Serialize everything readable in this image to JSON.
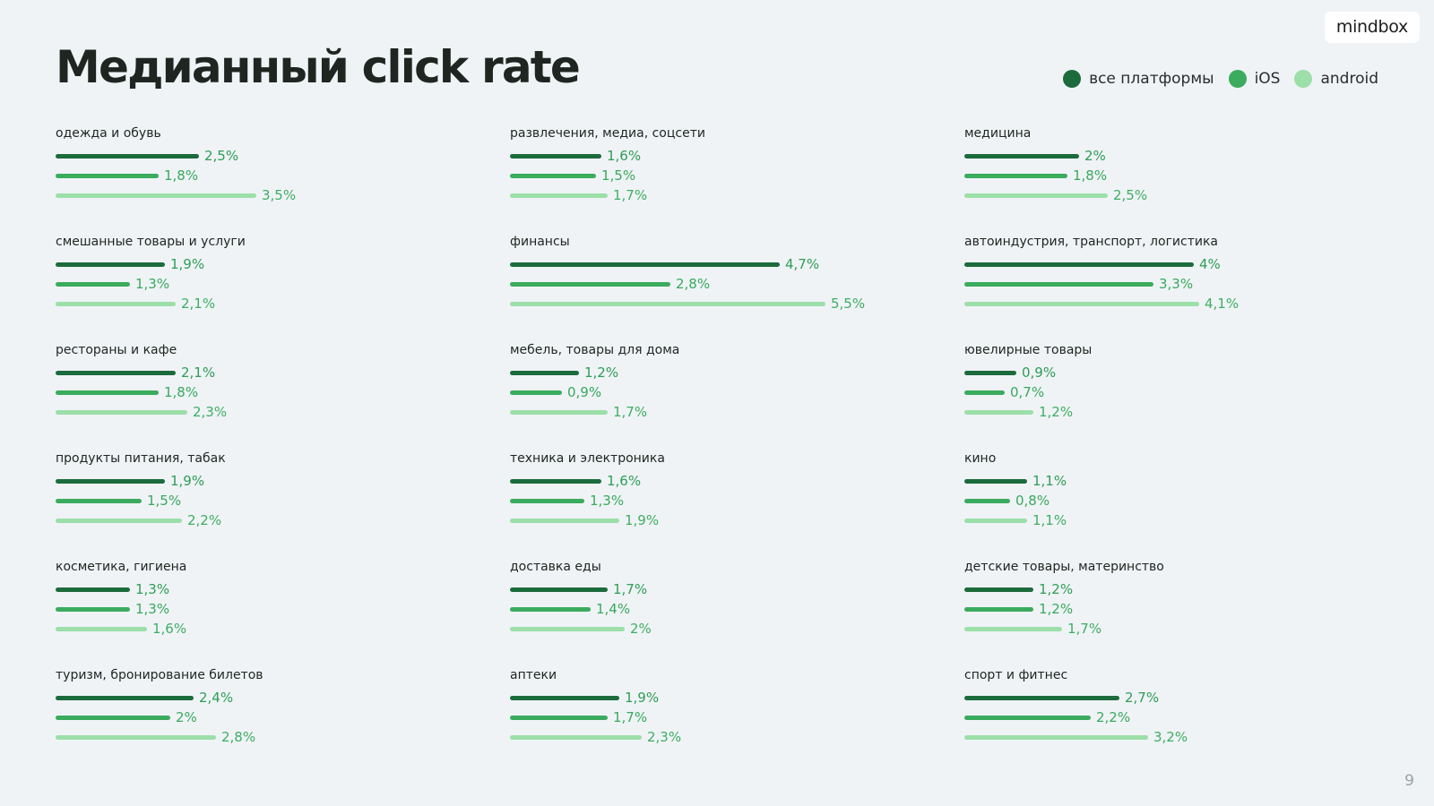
{
  "logo": "mindbox",
  "title": "Медианный click rate",
  "page_number": "9",
  "colors": {
    "all": "#1c6b3c",
    "ios": "#3bab5e",
    "android": "#9cdfa9"
  },
  "legend": [
    {
      "label": "все платформы",
      "key": "all"
    },
    {
      "label": "iOS",
      "key": "ios"
    },
    {
      "label": "android",
      "key": "android"
    }
  ],
  "chart_data": {
    "type": "bar",
    "orientation": "horizontal",
    "title": "Медианный click rate",
    "unit": "%",
    "series_names": [
      "все платформы",
      "iOS",
      "android"
    ],
    "categories": [
      {
        "name": "одежда и обувь",
        "values": [
          2.5,
          1.8,
          3.5
        ],
        "labels": [
          "2,5%",
          "1,8%",
          "3,5%"
        ]
      },
      {
        "name": "смешанные товары и услуги",
        "values": [
          1.9,
          1.3,
          2.1
        ],
        "labels": [
          "1,9%",
          "1,3%",
          "2,1%"
        ]
      },
      {
        "name": "рестораны и кафе",
        "values": [
          2.1,
          1.8,
          2.3
        ],
        "labels": [
          "2,1%",
          "1,8%",
          "2,3%"
        ]
      },
      {
        "name": "продукты питания, табак",
        "values": [
          1.9,
          1.5,
          2.2
        ],
        "labels": [
          "1,9%",
          "1,5%",
          "2,2%"
        ]
      },
      {
        "name": "косметика, гигиена",
        "values": [
          1.3,
          1.3,
          1.6
        ],
        "labels": [
          "1,3%",
          "1,3%",
          "1,6%"
        ]
      },
      {
        "name": "туризм, бронирование билетов",
        "values": [
          2.4,
          2.0,
          2.8
        ],
        "labels": [
          "2,4%",
          "2%",
          "2,8%"
        ]
      },
      {
        "name": "развлечения, медиа, соцсети",
        "values": [
          1.6,
          1.5,
          1.7
        ],
        "labels": [
          "1,6%",
          "1,5%",
          "1,7%"
        ]
      },
      {
        "name": "финансы",
        "values": [
          4.7,
          2.8,
          5.5
        ],
        "labels": [
          "4,7%",
          "2,8%",
          "5,5%"
        ]
      },
      {
        "name": "мебель, товары для дома",
        "values": [
          1.2,
          0.9,
          1.7
        ],
        "labels": [
          "1,2%",
          "0,9%",
          "1,7%"
        ]
      },
      {
        "name": "техника и электроника",
        "values": [
          1.6,
          1.3,
          1.9
        ],
        "labels": [
          "1,6%",
          "1,3%",
          "1,9%"
        ]
      },
      {
        "name": "доставка еды",
        "values": [
          1.7,
          1.4,
          2.0
        ],
        "labels": [
          "1,7%",
          "1,4%",
          "2%"
        ]
      },
      {
        "name": "аптеки",
        "values": [
          1.9,
          1.7,
          2.3
        ],
        "labels": [
          "1,9%",
          "1,7%",
          "2,3%"
        ]
      },
      {
        "name": "медицина",
        "values": [
          2.0,
          1.8,
          2.5
        ],
        "labels": [
          "2%",
          "1,8%",
          "2,5%"
        ]
      },
      {
        "name": "автоиндустрия, транспорт, логистика",
        "values": [
          4.0,
          3.3,
          4.1
        ],
        "labels": [
          "4%",
          "3,3%",
          "4,1%"
        ]
      },
      {
        "name": "ювелирные товары",
        "values": [
          0.9,
          0.7,
          1.2
        ],
        "labels": [
          "0,9%",
          "0,7%",
          "1,2%"
        ]
      },
      {
        "name": "кино",
        "values": [
          1.1,
          0.8,
          1.1
        ],
        "labels": [
          "1,1%",
          "0,8%",
          "1,1%"
        ]
      },
      {
        "name": "детские товары, материнство",
        "values": [
          1.2,
          1.2,
          1.7
        ],
        "labels": [
          "1,2%",
          "1,2%",
          "1,7%"
        ]
      },
      {
        "name": "спорт и фитнес",
        "values": [
          2.7,
          2.2,
          3.2
        ],
        "labels": [
          "2,7%",
          "2,2%",
          "3,2%"
        ]
      }
    ]
  }
}
